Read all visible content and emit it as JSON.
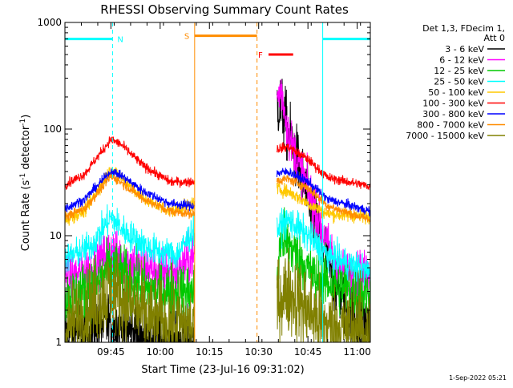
{
  "chart_data": {
    "type": "line",
    "title": "RHESSI Observing Summary Count Rates",
    "xlabel": "Start Time (23-Jul-16 09:31:02)",
    "ylabel_main": "Count Rate (s",
    "ylabel_sup1": "-1",
    "ylabel_mid": " detector",
    "ylabel_sup2": "-1",
    "ylabel_end": ")",
    "ylog": true,
    "ylim": [
      1,
      1000
    ],
    "xlim_minutes": [
      0,
      93
    ],
    "x_ticks": [
      {
        "label": "09:45",
        "minutes": 14
      },
      {
        "label": "10:00",
        "minutes": 29
      },
      {
        "label": "10:15",
        "minutes": 44
      },
      {
        "label": "10:30",
        "minutes": 59
      },
      {
        "label": "10:45",
        "minutes": 74
      },
      {
        "label": "11:00",
        "minutes": 89
      }
    ],
    "y_ticks": [
      {
        "label": "1",
        "value": 1
      },
      {
        "label": "10",
        "value": 10
      },
      {
        "label": "100",
        "value": 100
      },
      {
        "label": "1000",
        "value": 1000
      }
    ],
    "legend_title": "Det 1,3, FDecim 1,",
    "legend_subtitle": "Att 0",
    "legend_position": "right",
    "gaps_minutes": [
      [
        39.5,
        64.5
      ]
    ],
    "series": [
      {
        "name": "3 - 6 keV",
        "color": "#000000",
        "base": [
          [
            0,
            1.15
          ],
          [
            8,
            1.3
          ],
          [
            14,
            1.6
          ],
          [
            18,
            1.3
          ],
          [
            25,
            1.1
          ],
          [
            39,
            1.0
          ],
          [
            64,
            1.0
          ],
          [
            64.5,
            180
          ],
          [
            66,
            150
          ],
          [
            70,
            60
          ],
          [
            74,
            22
          ],
          [
            78,
            9
          ],
          [
            82,
            4
          ],
          [
            86,
            2
          ],
          [
            93,
            1.5
          ]
        ],
        "noise": 0.35
      },
      {
        "name": "6 - 12 keV",
        "color": "#ff00ff",
        "base": [
          [
            0,
            4.0
          ],
          [
            8,
            4.8
          ],
          [
            14,
            7.5
          ],
          [
            18,
            6.0
          ],
          [
            26,
            4.8
          ],
          [
            34,
            4.5
          ],
          [
            39,
            6.5
          ],
          [
            64,
            4.5
          ],
          [
            64.5,
            200
          ],
          [
            66,
            230
          ],
          [
            68,
            90
          ],
          [
            72,
            40
          ],
          [
            76,
            18
          ],
          [
            80,
            8
          ],
          [
            84,
            4.5
          ],
          [
            93,
            4.2
          ]
        ],
        "noise": 0.25
      },
      {
        "name": "12 - 25 keV",
        "color": "#00c800",
        "base": [
          [
            0,
            2.6
          ],
          [
            8,
            3.2
          ],
          [
            14,
            5.0
          ],
          [
            18,
            4.2
          ],
          [
            26,
            3.0
          ],
          [
            39,
            3.0
          ],
          [
            64,
            3.2
          ],
          [
            66,
            10
          ],
          [
            70,
            7
          ],
          [
            76,
            4
          ],
          [
            93,
            2.8
          ]
        ],
        "noise": 0.3
      },
      {
        "name": "25 - 50 keV",
        "color": "#00ffff",
        "base": [
          [
            0,
            6.0
          ],
          [
            8,
            8.0
          ],
          [
            14,
            15
          ],
          [
            18,
            11
          ],
          [
            26,
            7.5
          ],
          [
            34,
            6.5
          ],
          [
            39,
            11
          ],
          [
            64,
            11
          ],
          [
            68,
            14
          ],
          [
            74,
            10
          ],
          [
            80,
            6.5
          ],
          [
            93,
            4.5
          ]
        ],
        "noise": 0.16
      },
      {
        "name": "50 - 100 keV",
        "color": "#ffc800",
        "base": [
          [
            0,
            14
          ],
          [
            6,
            17
          ],
          [
            14,
            42
          ],
          [
            17,
            36
          ],
          [
            24,
            22
          ],
          [
            32,
            17
          ],
          [
            39,
            20
          ],
          [
            64,
            28
          ],
          [
            68,
            26
          ],
          [
            74,
            20
          ],
          [
            80,
            16
          ],
          [
            93,
            15
          ]
        ],
        "noise": 0.07
      },
      {
        "name": "100 - 300 keV",
        "color": "#ff0000",
        "base": [
          [
            0,
            30
          ],
          [
            6,
            38
          ],
          [
            14,
            80
          ],
          [
            17,
            72
          ],
          [
            24,
            45
          ],
          [
            32,
            32
          ],
          [
            39,
            32
          ],
          [
            64,
            65
          ],
          [
            68,
            68
          ],
          [
            74,
            52
          ],
          [
            80,
            35
          ],
          [
            93,
            29
          ]
        ],
        "noise": 0.05
      },
      {
        "name": "300 - 800 keV",
        "color": "#0000ff",
        "base": [
          [
            0,
            18
          ],
          [
            6,
            22
          ],
          [
            14,
            40
          ],
          [
            17,
            37
          ],
          [
            24,
            26
          ],
          [
            32,
            20
          ],
          [
            39,
            19
          ],
          [
            64,
            38
          ],
          [
            68,
            40
          ],
          [
            74,
            32
          ],
          [
            80,
            22
          ],
          [
            93,
            17
          ]
        ],
        "noise": 0.05
      },
      {
        "name": "800 - 7000 keV",
        "color": "#ff8c00",
        "base": [
          [
            0,
            15
          ],
          [
            6,
            18
          ],
          [
            14,
            36
          ],
          [
            17,
            32
          ],
          [
            24,
            22
          ],
          [
            32,
            17
          ],
          [
            39,
            16
          ],
          [
            64,
            33
          ],
          [
            68,
            34
          ],
          [
            74,
            28
          ],
          [
            80,
            19
          ],
          [
            93,
            14
          ]
        ],
        "noise": 0.05
      },
      {
        "name": "7000 - 15000 keV",
        "color": "#808000",
        "base": [
          [
            0,
            1.3
          ],
          [
            6,
            1.9
          ],
          [
            14,
            3.2
          ],
          [
            18,
            2.5
          ],
          [
            26,
            1.6
          ],
          [
            39,
            1.4
          ],
          [
            64,
            2.4
          ],
          [
            68,
            3.0
          ],
          [
            74,
            2.0
          ],
          [
            80,
            1.4
          ],
          [
            93,
            1.3
          ]
        ],
        "noise": 0.45
      }
    ],
    "markers": [
      {
        "label": "N",
        "color": "#00ffff",
        "bars_minutes": [
          [
            0,
            14.5
          ],
          [
            78.5,
            93
          ]
        ],
        "level": 700,
        "dashed_minutes": [
          14.5,
          93
        ],
        "solid_minutes": [
          0,
          78.5
        ]
      },
      {
        "label": "S",
        "color": "#ff8c00",
        "bars_minutes": [
          [
            39.5,
            58.5
          ]
        ],
        "level": 750,
        "solid_minutes": [
          39.5
        ],
        "dashed_minutes": [
          58.5
        ]
      },
      {
        "label": "F",
        "color": "#ff0000",
        "bars_minutes": [
          [
            62,
            69.5
          ]
        ],
        "level": 500,
        "solid_minutes": [],
        "dashed_minutes": []
      }
    ]
  },
  "footer_timestamp": "1-Sep-2022 05:21"
}
